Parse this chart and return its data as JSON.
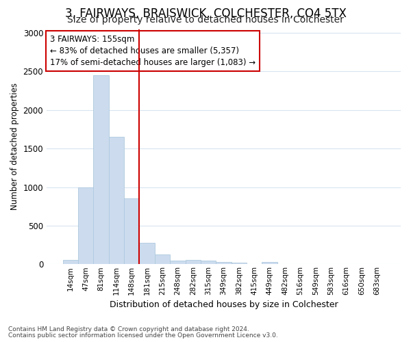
{
  "title1": "3, FAIRWAYS, BRAISWICK, COLCHESTER, CO4 5TX",
  "title2": "Size of property relative to detached houses in Colchester",
  "xlabel": "Distribution of detached houses by size in Colchester",
  "ylabel": "Number of detached properties",
  "categories": [
    "14sqm",
    "47sqm",
    "81sqm",
    "114sqm",
    "148sqm",
    "181sqm",
    "215sqm",
    "248sqm",
    "282sqm",
    "315sqm",
    "349sqm",
    "382sqm",
    "415sqm",
    "449sqm",
    "482sqm",
    "516sqm",
    "549sqm",
    "583sqm",
    "616sqm",
    "650sqm",
    "683sqm"
  ],
  "values": [
    55,
    1000,
    2450,
    1650,
    850,
    275,
    130,
    50,
    55,
    50,
    30,
    20,
    0,
    30,
    0,
    0,
    0,
    0,
    0,
    0,
    0
  ],
  "bar_color": "#ccdcee",
  "bar_edge_color": "#aec8de",
  "red_line_index": 4,
  "red_line_color": "#cc0000",
  "annotation_line1": "3 FAIRWAYS: 155sqm",
  "annotation_line2": "← 83% of detached houses are smaller (5,357)",
  "annotation_line3": "17% of semi-detached houses are larger (1,083) →",
  "annotation_box_color": "#cc0000",
  "ylim": [
    0,
    3050
  ],
  "yticks": [
    0,
    500,
    1000,
    1500,
    2000,
    2500,
    3000
  ],
  "footer1": "Contains HM Land Registry data © Crown copyright and database right 2024.",
  "footer2": "Contains public sector information licensed under the Open Government Licence v3.0.",
  "bg_color": "#ffffff",
  "plot_bg_color": "#ffffff",
  "grid_color": "#d8e4f0",
  "title1_fontsize": 12,
  "title2_fontsize": 10
}
